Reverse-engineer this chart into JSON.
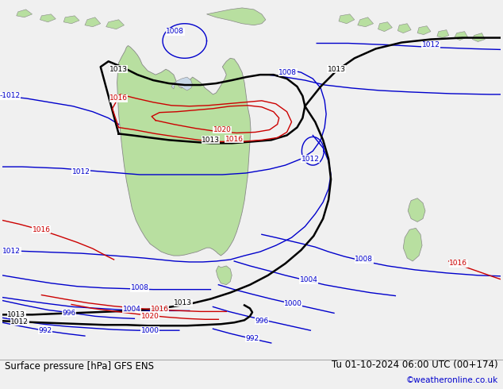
{
  "title_left": "Surface pressure [hPa] GFS ENS",
  "title_right": "Tu 01-10-2024 06:00 UTC (00+174)",
  "credit": "©weatheronline.co.uk",
  "land_color": "#b8dfa0",
  "coast_color": "#888888",
  "ocean_color": "#c8d8e8",
  "isobar_blue": "#0000cc",
  "isobar_black": "#000000",
  "isobar_red": "#cc0000",
  "lw_blue": 1.0,
  "lw_black": 1.8,
  "lw_red": 1.0,
  "label_fs": 6.5,
  "title_fs": 8.5,
  "credit_fs": 7.5,
  "credit_color": "#0000cc"
}
